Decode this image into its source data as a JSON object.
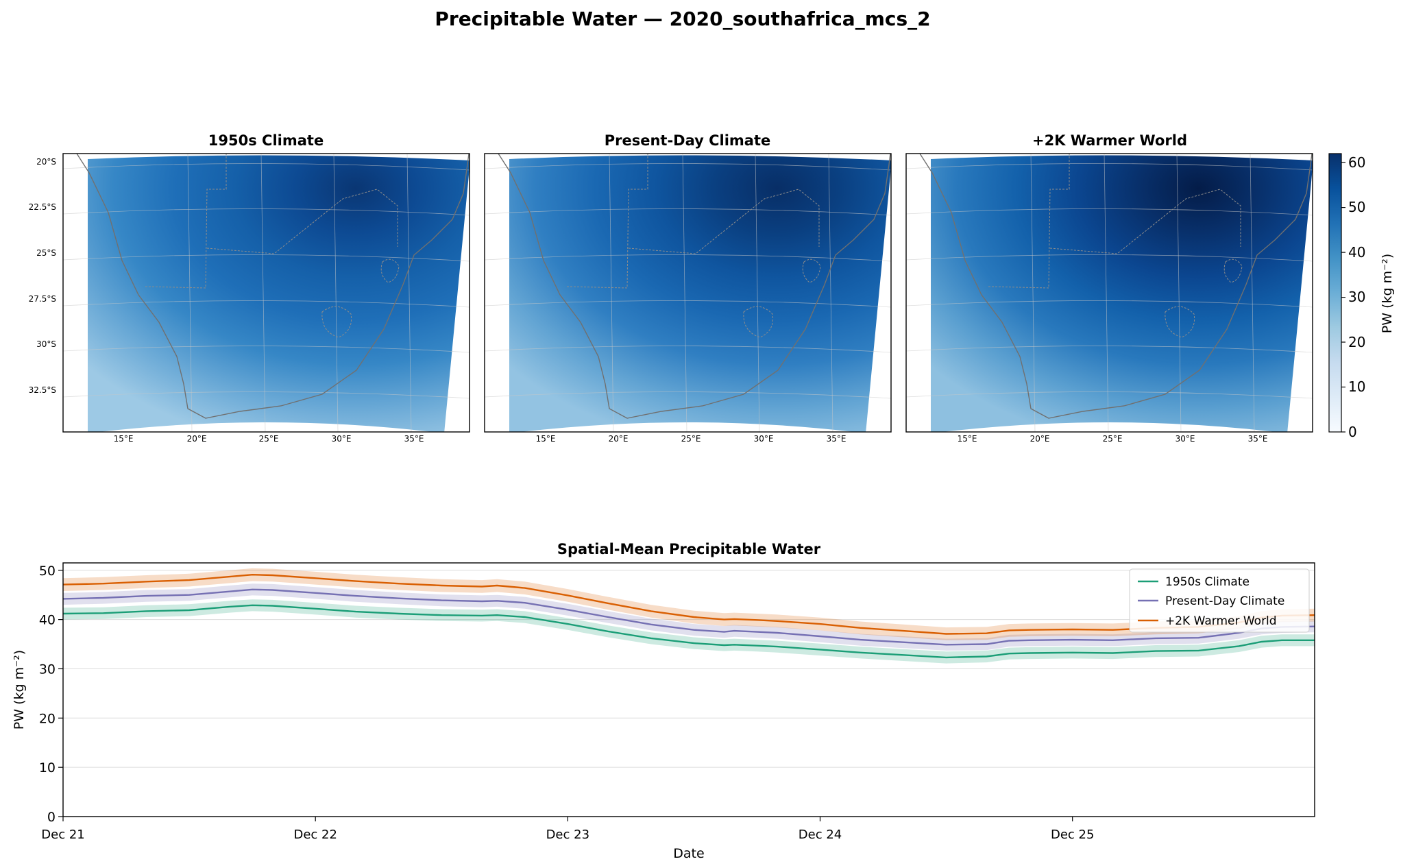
{
  "page": {
    "suptitle": "Precipitable Water — 2020_southafrica_mcs_2"
  },
  "maps": {
    "panels": [
      {
        "title": "1950s Climate"
      },
      {
        "title": "Present-Day Climate"
      },
      {
        "title": "+2K Warmer World"
      }
    ],
    "lat_ticks": [
      "20°S",
      "22.5°S",
      "25°S",
      "27.5°S",
      "30°S",
      "32.5°S"
    ],
    "lon_ticks": [
      "15°E",
      "20°E",
      "25°E",
      "30°E",
      "35°E"
    ],
    "colorbar": {
      "label": "PW (kg m⁻²)",
      "ticks": [
        "0",
        "10",
        "20",
        "30",
        "40",
        "50",
        "60"
      ],
      "range": [
        0,
        62
      ],
      "colormap": "Blues",
      "stops": [
        "#f7fbff",
        "#deebf7",
        "#c6dbef",
        "#9ecae1",
        "#6baed6",
        "#4292c6",
        "#2171b5",
        "#08519c",
        "#08306b"
      ]
    }
  },
  "chart_data": {
    "type": "line",
    "title": "Spatial-Mean Precipitable Water",
    "xlabel": "Date",
    "ylabel": "PW (kg m⁻²)",
    "x_ticks": [
      "Dec 21",
      "Dec 22",
      "Dec 23",
      "Dec 24",
      "Dec 25"
    ],
    "xlim": [
      0,
      4.96
    ],
    "ylim": [
      0,
      51.5
    ],
    "y_ticks": [
      "0",
      "10",
      "20",
      "30",
      "40",
      "50"
    ],
    "y_tick_values": [
      0,
      10,
      20,
      30,
      40,
      50
    ],
    "grid": "horizontal",
    "legend": "top-right",
    "x": [
      0,
      0.16,
      0.33,
      0.5,
      0.66,
      0.75,
      0.83,
      1.0,
      1.16,
      1.33,
      1.5,
      1.66,
      1.72,
      1.83,
      2.0,
      2.16,
      2.33,
      2.5,
      2.62,
      2.66,
      2.75,
      2.83,
      3.0,
      3.16,
      3.33,
      3.5,
      3.66,
      3.75,
      3.83,
      4.0,
      4.16,
      4.33,
      4.5,
      4.66,
      4.75,
      4.83,
      4.96
    ],
    "series": [
      {
        "name": "1950s Climate",
        "color": "#1b9e77",
        "band": 1.2,
        "values": [
          41.2,
          41.3,
          41.7,
          41.9,
          42.6,
          42.9,
          42.8,
          42.2,
          41.6,
          41.2,
          40.9,
          40.8,
          40.9,
          40.5,
          39.1,
          37.6,
          36.2,
          35.2,
          34.8,
          34.9,
          34.7,
          34.5,
          33.9,
          33.3,
          32.8,
          32.3,
          32.5,
          33.1,
          33.2,
          33.3,
          33.2,
          33.6,
          33.7,
          34.6,
          35.5,
          35.8,
          35.8
        ]
      },
      {
        "name": "Present-Day Climate",
        "color": "#7570b3",
        "band": 1.2,
        "values": [
          44.2,
          44.4,
          44.8,
          45.0,
          45.7,
          46.1,
          46.0,
          45.4,
          44.8,
          44.3,
          43.9,
          43.7,
          43.8,
          43.4,
          42.0,
          40.5,
          39.0,
          37.9,
          37.5,
          37.7,
          37.5,
          37.3,
          36.6,
          35.9,
          35.4,
          34.9,
          35.0,
          35.7,
          35.8,
          35.9,
          35.8,
          36.2,
          36.3,
          37.3,
          38.2,
          38.5,
          38.6
        ]
      },
      {
        "name": "+2K Warmer World",
        "color": "#d95f02",
        "band": 1.3,
        "values": [
          47.1,
          47.3,
          47.7,
          48.0,
          48.7,
          49.1,
          49.0,
          48.4,
          47.8,
          47.3,
          46.9,
          46.7,
          46.9,
          46.4,
          44.9,
          43.3,
          41.7,
          40.5,
          40.0,
          40.1,
          39.9,
          39.7,
          39.1,
          38.3,
          37.7,
          37.1,
          37.2,
          37.8,
          37.9,
          38.0,
          37.9,
          38.3,
          38.5,
          39.4,
          40.4,
          40.8,
          40.9
        ]
      }
    ]
  }
}
